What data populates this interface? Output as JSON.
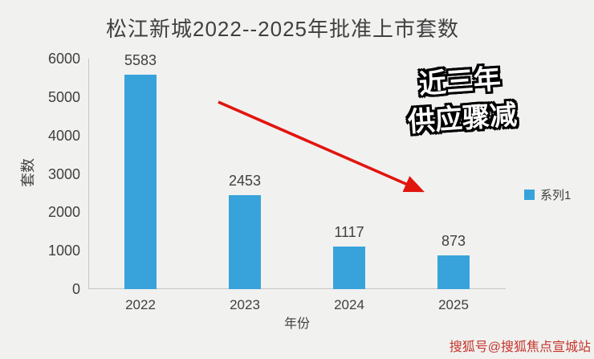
{
  "chart_data": {
    "type": "bar",
    "title": "松江新城2022--2025年批准上市套数",
    "categories": [
      "2022",
      "2023",
      "2024",
      "2025"
    ],
    "values": [
      5583,
      2453,
      1117,
      873
    ],
    "xlabel": "年份",
    "ylabel": "套数",
    "ylim": [
      0,
      6000
    ],
    "yticks": [
      0,
      1000,
      2000,
      3000,
      4000,
      5000,
      6000
    ],
    "grid": false,
    "legend": {
      "label": "系列1",
      "position": "right"
    },
    "bar_color": "#38a3db"
  },
  "annotation": {
    "line1": "近三年",
    "line2": "供应骤减",
    "arrow_color": "#e1150e"
  },
  "watermark": {
    "text": "搜狐号@搜狐焦点宣城站",
    "color": "#c5352c"
  },
  "colors": {
    "background": "#f1f1f0",
    "axis": "#c6c6c6",
    "text": "#404040"
  }
}
